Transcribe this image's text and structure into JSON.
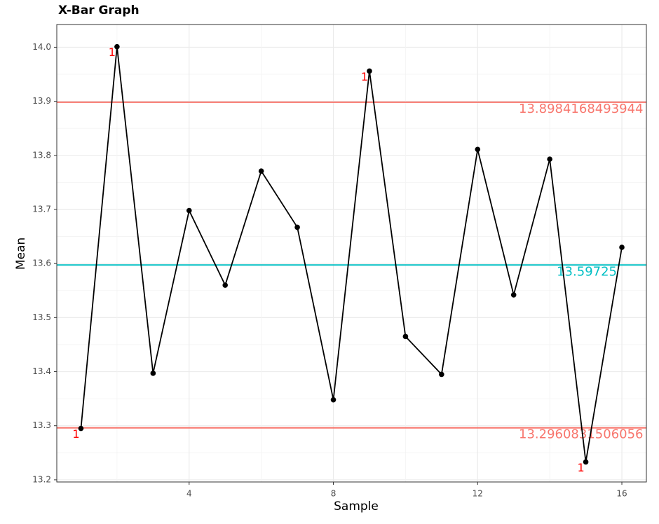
{
  "chart_data": {
    "type": "line",
    "title": "X-Bar Graph",
    "x_label": "Sample",
    "y_label": "Mean",
    "x": [
      1,
      2,
      3,
      4,
      5,
      6,
      7,
      8,
      9,
      10,
      11,
      12,
      13,
      14,
      15,
      16
    ],
    "series": [
      {
        "color": "#000000",
        "values": [
          13.295,
          14.001,
          13.397,
          13.698,
          13.56,
          13.771,
          13.667,
          13.348,
          13.956,
          13.465,
          13.395,
          13.811,
          13.542,
          13.793,
          13.233,
          13.63
        ]
      }
    ],
    "point_labels": [
      {
        "index": 0,
        "text": "1"
      },
      {
        "index": 1,
        "text": "1"
      },
      {
        "index": 8,
        "text": "1"
      },
      {
        "index": 14,
        "text": "1"
      }
    ],
    "point_label_color": "#ff0000",
    "hlines": [
      {
        "value": 13.8984168493944,
        "color": "#f8766d"
      },
      {
        "value": 13.59725,
        "color": "#00bfc4"
      },
      {
        "value": 13.2960831506056,
        "color": "#f8766d"
      }
    ],
    "xlim": [
      0.33,
      16.68
    ],
    "ylim": [
      13.196,
      14.042
    ],
    "xticks": [
      4,
      8,
      12,
      16
    ],
    "yticks": [
      13.2,
      13.3,
      13.4,
      13.5,
      13.6,
      13.7,
      13.8,
      13.9,
      {
        "value": 14.0,
        "label": "14.0"
      }
    ],
    "grid": true
  }
}
